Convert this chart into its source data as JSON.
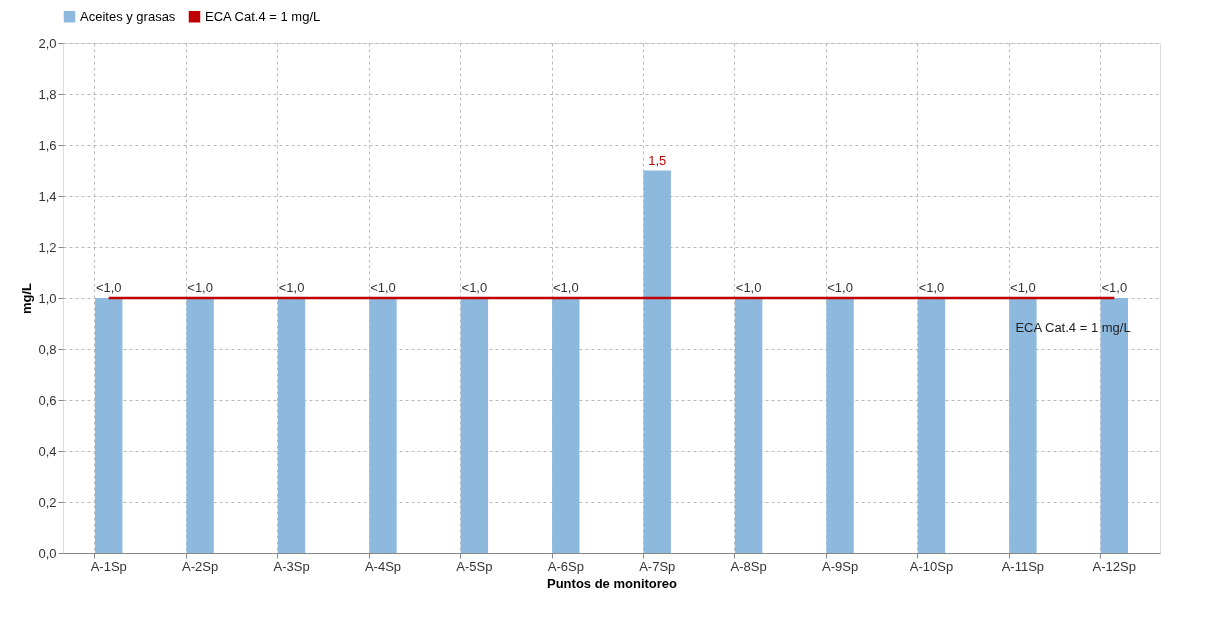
{
  "chart_data": {
    "type": "bar",
    "xlabel": "Puntos de monitoreo",
    "ylabel": "mg/L",
    "categories": [
      "A-1Sp",
      "A-2Sp",
      "A-3Sp",
      "A-4Sp",
      "A-5Sp",
      "A-6Sp",
      "A-7Sp",
      "A-8Sp",
      "A-9Sp",
      "A-10Sp",
      "A-11Sp",
      "A-12Sp"
    ],
    "series": [
      {
        "name": "Aceites y grasas",
        "color": "#8db9df",
        "values": [
          1.0,
          1.0,
          1.0,
          1.0,
          1.0,
          1.0,
          1.5,
          1.0,
          1.0,
          1.0,
          1.0,
          1.0
        ],
        "value_labels": [
          "<1,0",
          "<1,0",
          "<1,0",
          "<1,0",
          "<1,0",
          "<1,0",
          "1,5",
          "<1,0",
          "<1,0",
          "<1,0",
          "<1,0",
          "<1,0"
        ]
      }
    ],
    "ref_lines": [
      {
        "axis": "y",
        "value": 1,
        "label": "ECA Cat.4 = 1 mg/L",
        "color": "#c00000",
        "line_style": "solid"
      }
    ],
    "ylim": [
      0,
      2
    ],
    "yticks": [
      {
        "value": 0,
        "label": "0,0"
      },
      {
        "value": 0.2,
        "label": "0,2"
      },
      {
        "value": 0.4,
        "label": "0,4"
      },
      {
        "value": 0.6,
        "label": "0,6"
      },
      {
        "value": 0.8,
        "label": "0,8"
      },
      {
        "value": 1.0,
        "label": "1,0"
      },
      {
        "value": 1.2,
        "label": "1,2"
      },
      {
        "value": 1.4,
        "label": "1,4"
      },
      {
        "value": 1.6,
        "label": "1,6"
      },
      {
        "value": 1.8,
        "label": "1,8"
      },
      {
        "value": 2.0,
        "label": "2,0"
      }
    ],
    "grid": true,
    "legend": "top"
  }
}
